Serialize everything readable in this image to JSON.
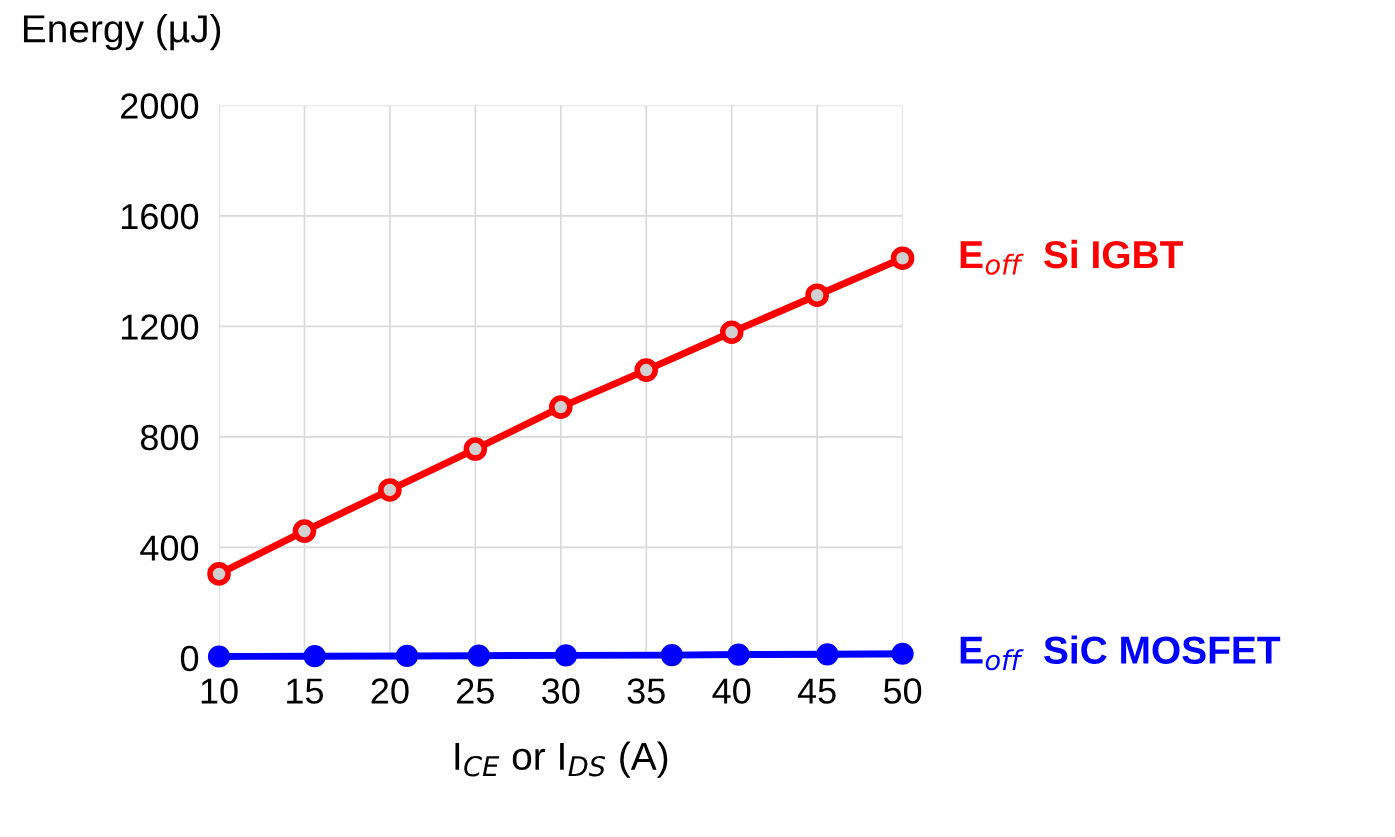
{
  "chart_data": {
    "type": "line",
    "xlabel": "I$_{CE}$ or I$_{DS}$ (A)",
    "ylabel": "Energy (µJ)",
    "xlim": [
      10,
      50
    ],
    "xticks": [
      10,
      15,
      20,
      25,
      30,
      35,
      40,
      45,
      50
    ],
    "ylim": [
      0,
      2000
    ],
    "yticks": [
      0,
      400,
      800,
      1200,
      1600,
      2000
    ],
    "grid": true,
    "marker": "circle",
    "legend": false,
    "series": [
      {
        "name": "E$_{off}$  Si IGBT",
        "color": "#ff0000",
        "x": [
          10,
          15,
          20,
          25,
          30,
          35,
          40,
          45,
          50
        ],
        "values": [
          304,
          459,
          608,
          756,
          908,
          1042,
          1179,
          1313,
          1447
        ]
      },
      {
        "name": "E$_{off}$  SiC MOSFET",
        "color": "#0000ff",
        "x": [
          10,
          15.6,
          21,
          25.2,
          30.3,
          36.5,
          40.4,
          45.6,
          50
        ],
        "values": [
          5,
          6,
          7,
          8,
          9,
          10,
          12,
          13,
          15
        ]
      }
    ]
  }
}
